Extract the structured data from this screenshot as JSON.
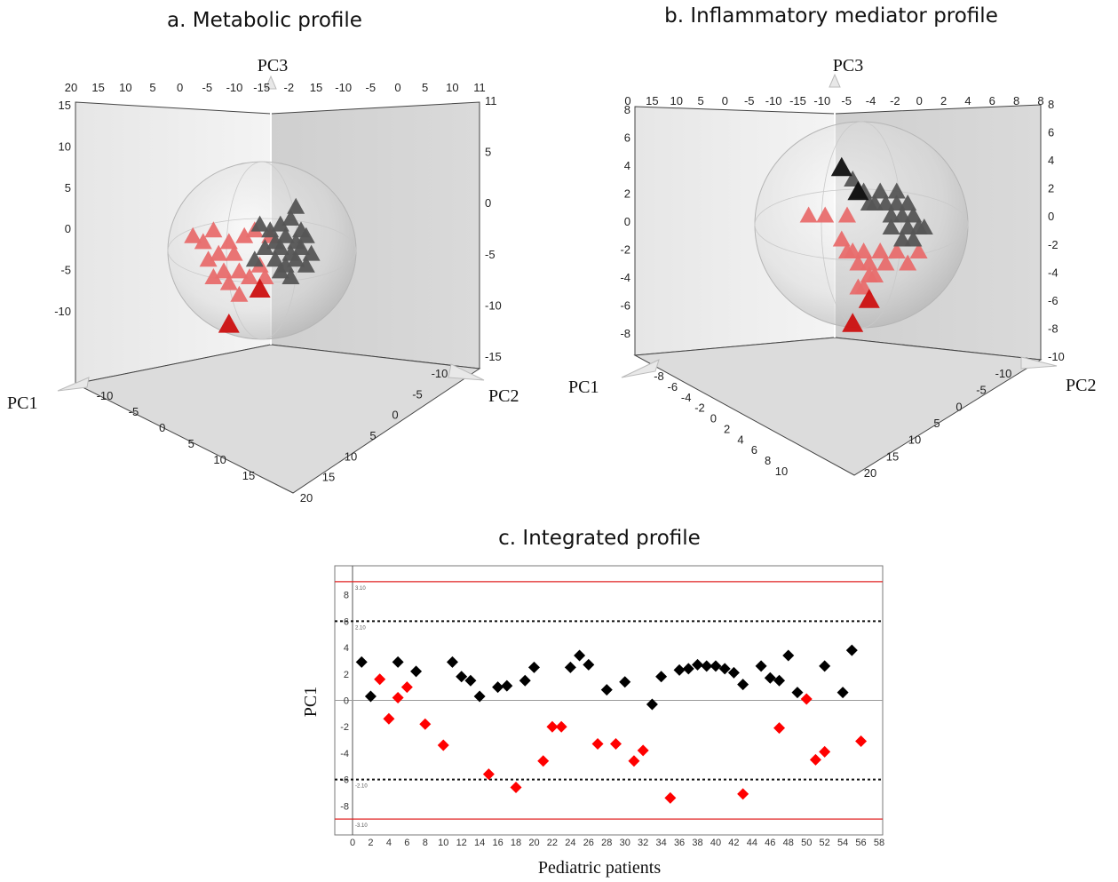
{
  "chart_data": [
    {
      "type": "scatter",
      "title": "a. Metabolic profile",
      "axis_labels": [
        "PC1",
        "PC2",
        "PC3"
      ],
      "ticks": {
        "top": [
          "20",
          "15",
          "10",
          "5",
          "0",
          "-5",
          "-10",
          "-15",
          "-2",
          "15",
          "-10",
          "-5",
          "0",
          "5",
          "10",
          "11"
        ],
        "left": [
          "15",
          "10",
          "5",
          "0",
          "-5",
          "-10"
        ],
        "right": [
          "11",
          "5",
          "0",
          "-5",
          "-10",
          "-15"
        ],
        "pc1": [
          "-10",
          "-5",
          "0",
          "5",
          "10",
          "15"
        ],
        "pc2": [
          "-10",
          "-5",
          "0",
          "5",
          "10",
          "15",
          "20"
        ]
      },
      "series": [
        {
          "color": "#e86d6d",
          "points": [
            [
              -16,
              2
            ],
            [
              -12,
              3
            ],
            [
              -14,
              1
            ],
            [
              -11,
              -1
            ],
            [
              -9,
              1
            ],
            [
              -13,
              -2
            ],
            [
              -8,
              -1
            ],
            [
              -10,
              -4
            ],
            [
              -12,
              -5
            ],
            [
              -7,
              -4
            ],
            [
              -9,
              -6
            ],
            [
              -5,
              -5
            ],
            [
              -6,
              2
            ],
            [
              -4,
              3
            ],
            [
              -3,
              -3
            ],
            [
              -2,
              -5
            ],
            [
              -1,
              2
            ],
            [
              -7,
              -8
            ]
          ]
        },
        {
          "color": "#555555",
          "points": [
            [
              -3,
              4
            ],
            [
              -1,
              3
            ],
            [
              1,
              4
            ],
            [
              3,
              5
            ],
            [
              5,
              3
            ],
            [
              0,
              1
            ],
            [
              2,
              2
            ],
            [
              4,
              1
            ],
            [
              6,
              2
            ],
            [
              -2,
              0
            ],
            [
              1,
              0
            ],
            [
              3,
              -1
            ],
            [
              5,
              0
            ],
            [
              7,
              -1
            ],
            [
              0,
              -2
            ],
            [
              2,
              -3
            ],
            [
              4,
              -2
            ],
            [
              6,
              -3
            ],
            [
              1,
              -4
            ],
            [
              3,
              -5
            ],
            [
              -4,
              -2
            ],
            [
              4,
              7
            ]
          ]
        },
        {
          "color": "#cc1010",
          "points": [
            [
              -3,
              -7
            ],
            [
              -9,
              -13
            ]
          ]
        }
      ]
    },
    {
      "type": "scatter",
      "title": "b. Inflammatory mediator profile",
      "axis_labels": [
        "PC1",
        "PC2",
        "PC3"
      ],
      "ticks": {
        "top": [
          "0",
          "15",
          "10",
          "5",
          "0",
          "-5",
          "-10",
          "-15",
          "-10",
          "-5",
          "-4",
          "-2",
          "0",
          "2",
          "4",
          "6",
          "8",
          "8"
        ],
        "left": [
          "8",
          "6",
          "4",
          "2",
          "0",
          "-2",
          "-4",
          "-6",
          "-8"
        ],
        "right": [
          "8",
          "6",
          "4",
          "2",
          "0",
          "-2",
          "-4",
          "-6",
          "-8",
          "-10"
        ],
        "pc1": [
          "-8",
          "-6",
          "-4",
          "-2",
          "0",
          "2",
          "4",
          "6",
          "8",
          "10"
        ],
        "pc2": [
          "-10",
          "-5",
          "0",
          "5",
          "10",
          "15",
          "20"
        ]
      },
      "series": [
        {
          "color": "#e86d6d",
          "points": [
            [
              -12,
              1
            ],
            [
              -9,
              1
            ],
            [
              -6,
              -1
            ],
            [
              -5,
              1
            ],
            [
              -4,
              -2
            ],
            [
              -3,
              -3
            ],
            [
              -2,
              -2
            ],
            [
              -1,
              -3
            ],
            [
              0,
              -4
            ],
            [
              1,
              -2
            ],
            [
              2,
              -3
            ],
            [
              -3,
              -5
            ],
            [
              -2,
              -5
            ],
            [
              -1,
              -4
            ],
            [
              4,
              -2
            ],
            [
              6,
              -3
            ],
            [
              8,
              -2
            ],
            [
              -5,
              -2
            ]
          ]
        },
        {
          "color": "#555555",
          "points": [
            [
              -4,
              4
            ],
            [
              -2,
              3
            ],
            [
              -1,
              2
            ],
            [
              0,
              2
            ],
            [
              1,
              3
            ],
            [
              2,
              2
            ],
            [
              3,
              1
            ],
            [
              4,
              2
            ],
            [
              5,
              1
            ],
            [
              6,
              0
            ],
            [
              7,
              1
            ],
            [
              8,
              0
            ],
            [
              3,
              0
            ],
            [
              5,
              -1
            ],
            [
              6,
              2
            ],
            [
              7,
              -1
            ],
            [
              9,
              0
            ],
            [
              4,
              3
            ],
            [
              -3,
              3
            ]
          ]
        },
        {
          "color": "#111111",
          "points": [
            [
              -6,
              5
            ],
            [
              -3,
              3
            ]
          ]
        },
        {
          "color": "#cc1010",
          "points": [
            [
              -4,
              -8
            ],
            [
              -1,
              -6
            ]
          ]
        }
      ]
    },
    {
      "type": "scatter",
      "title": "c. Integrated profile",
      "xlabel": "Pediatric patients",
      "ylabel": "PC1",
      "xlim": [
        0,
        58
      ],
      "ylim": [
        -10,
        10
      ],
      "xticks": [
        "0",
        "2",
        "4",
        "6",
        "8",
        "10",
        "12",
        "14",
        "16",
        "18",
        "20",
        "22",
        "24",
        "26",
        "28",
        "30",
        "32",
        "34",
        "36",
        "38",
        "40",
        "42",
        "44",
        "46",
        "48",
        "50",
        "52",
        "54",
        "56",
        "58"
      ],
      "yticks": [
        "-8",
        "-6",
        "-4",
        "-2",
        "0",
        "2",
        "4",
        "6",
        "8"
      ],
      "ref_lines": {
        "red": [
          9,
          -9
        ],
        "dotted": [
          6,
          -6
        ],
        "zero": 0
      },
      "ref_labels": [
        "3.10",
        "2.10",
        "-2.10",
        "-3.10"
      ],
      "series": [
        {
          "color": "#000000",
          "x": [
            1,
            2,
            5,
            7,
            11,
            12,
            13,
            14,
            16,
            17,
            19,
            20,
            24,
            25,
            26,
            28,
            30,
            33,
            34,
            36,
            37,
            38,
            39,
            40,
            41,
            42,
            43,
            45,
            46,
            47,
            48,
            49,
            52,
            54,
            55,
            56
          ],
          "y": [
            2.9,
            0.3,
            2.9,
            2.2,
            2.9,
            1.8,
            1.5,
            0.3,
            1.0,
            1.1,
            1.5,
            2.5,
            2.5,
            3.4,
            2.7,
            0.8,
            1.4,
            -0.3,
            1.8,
            2.3,
            2.4,
            2.7,
            2.6,
            2.6,
            2.4,
            2.1,
            1.2,
            2.6,
            1.7,
            1.5,
            3.4,
            0.6,
            2.6,
            0.6,
            3.8,
            0
          ]
        },
        {
          "color": "#ff0000",
          "x": [
            3,
            4,
            5,
            6,
            8,
            10,
            15,
            18,
            21,
            22,
            23,
            27,
            29,
            31,
            32,
            35,
            43,
            47,
            50,
            51,
            52,
            56
          ],
          "y": [
            1.6,
            -1.4,
            0.2,
            1.0,
            -1.8,
            -3.4,
            -5.6,
            -6.6,
            -4.6,
            -2.0,
            -2.0,
            -3.3,
            -3.3,
            -4.6,
            -3.8,
            -7.4,
            -7.1,
            -2.1,
            0.1,
            -4.5,
            -3.9,
            -3.1
          ]
        }
      ]
    }
  ]
}
